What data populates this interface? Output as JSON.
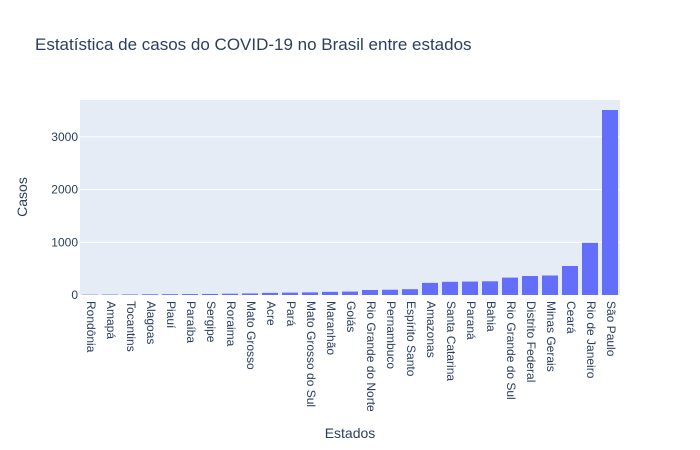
{
  "chart_data": {
    "type": "bar",
    "title": "Estatística de casos do COVID-19 no Brasil entre estados",
    "xlabel": "Estados",
    "ylabel": "Casos",
    "ylim": [
      0,
      3700
    ],
    "yticks": [
      0,
      1000,
      2000,
      3000
    ],
    "grid": true,
    "colors": {
      "bar": "#636efa",
      "plot_bg": "#e5ecf6",
      "grid": "#ffffff",
      "text": "#2a3f5f"
    },
    "categories": [
      "Rondônia",
      "Amapá",
      "Tocantins",
      "Alagoas",
      "Piauí",
      "Paraíba",
      "Sergipe",
      "Roraima",
      "Mato Grosso",
      "Acre",
      "Pará",
      "Mato Grosso do Sul",
      "Maranhão",
      "Goiás",
      "Rio Grande do Norte",
      "Pernambuco",
      "Espírito Santo",
      "Amazonas",
      "Santa Catarina",
      "Paraná",
      "Bahia",
      "Rio Grande do Sul",
      "Distrito Federal",
      "Minas Gerais",
      "Ceará",
      "Rio de Janeiro",
      "São Paulo"
    ],
    "values": [
      6,
      8,
      10,
      14,
      16,
      18,
      20,
      25,
      30,
      40,
      45,
      50,
      60,
      65,
      95,
      100,
      110,
      230,
      250,
      255,
      260,
      330,
      360,
      370,
      550,
      990,
      3510
    ]
  }
}
